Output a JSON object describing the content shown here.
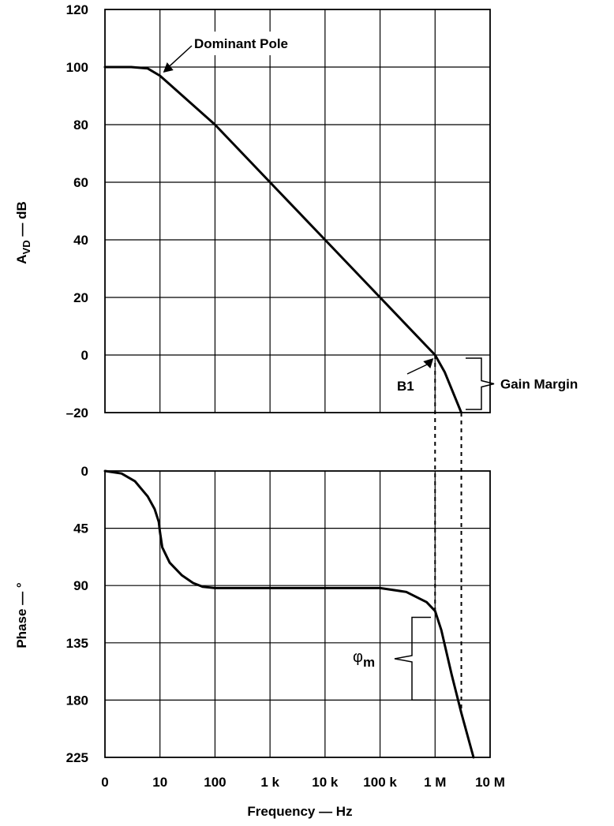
{
  "chart_data": {
    "type": "line",
    "x_axis": {
      "label": "Frequency — Hz",
      "scale": "log",
      "ticks": [
        "0",
        "10",
        "100",
        "1 k",
        "10 k",
        "100 k",
        "1 M",
        "10 M"
      ]
    },
    "panels": [
      {
        "name": "gain",
        "ylabel_main": "A",
        "ylabel_sub": "VD",
        "ylabel_rest": " — dB",
        "y_ticks": [
          "120",
          "100",
          "80",
          "60",
          "40",
          "20",
          "0",
          "–20"
        ],
        "ylim": [
          -20,
          120
        ],
        "series": [
          {
            "points": [
              [
                1,
                100
              ],
              [
                3,
                100
              ],
              [
                6,
                99.5
              ],
              [
                10,
                97
              ],
              [
                15,
                94
              ],
              [
                100,
                80
              ],
              [
                1000,
                60
              ],
              [
                10000,
                40
              ],
              [
                100000,
                20
              ],
              [
                1000000,
                0
              ],
              [
                1500000,
                -6
              ],
              [
                3000000,
                -20
              ]
            ]
          }
        ],
        "annotations": [
          {
            "text": "Dominant Pole",
            "x": 10,
            "y": 100
          },
          {
            "text": "B1",
            "x": 1000000,
            "y": 0
          },
          {
            "text": "Gain Margin",
            "x_range": [
              1000000,
              3000000
            ],
            "y_range": [
              -20,
              0
            ]
          }
        ]
      },
      {
        "name": "phase",
        "ylabel": "Phase — °",
        "y_ticks": [
          "0",
          "45",
          "90",
          "135",
          "180",
          "225"
        ],
        "ylim": [
          0,
          225
        ],
        "inverted": true,
        "series": [
          {
            "points": [
              [
                1,
                0
              ],
              [
                2,
                2
              ],
              [
                3.5,
                8
              ],
              [
                6,
                20
              ],
              [
                8,
                30
              ],
              [
                9.5,
                40
              ],
              [
                10,
                48
              ],
              [
                11,
                60
              ],
              [
                15,
                72
              ],
              [
                25,
                82
              ],
              [
                40,
                88
              ],
              [
                60,
                91
              ],
              [
                100,
                92
              ],
              [
                1000,
                92
              ],
              [
                10000,
                92
              ],
              [
                100000,
                92
              ],
              [
                300000,
                95
              ],
              [
                700000,
                103
              ],
              [
                1000000,
                110
              ],
              [
                1300000,
                125
              ],
              [
                2000000,
                160
              ],
              [
                3000000,
                190
              ],
              [
                5000000,
                225
              ]
            ]
          }
        ],
        "annotations": [
          {
            "text_main": "φ",
            "text_sub": "m",
            "x": 1000000,
            "y_range": [
              115,
              180
            ]
          }
        ]
      }
    ]
  }
}
